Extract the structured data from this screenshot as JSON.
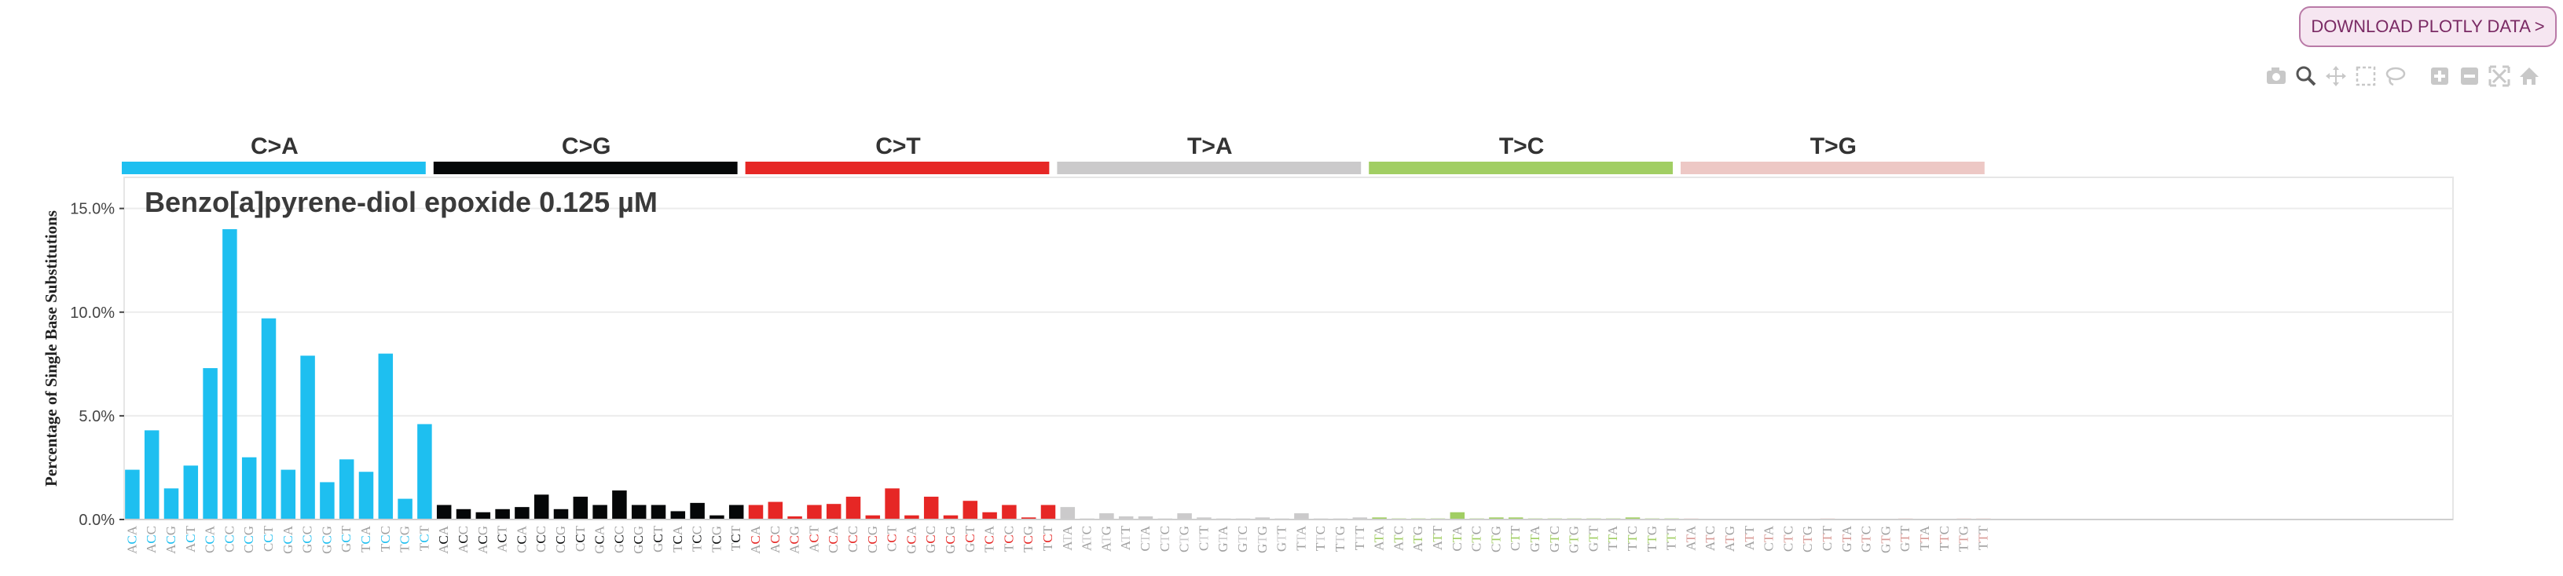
{
  "download_button": {
    "label": "DOWNLOAD PLOTLY DATA >"
  },
  "modebar": [
    "camera-icon",
    "zoom-icon",
    "pan-icon",
    "box-select-icon",
    "lasso-icon",
    "zoom-in-icon",
    "zoom-out-icon",
    "autoscale-icon",
    "reset-axes-icon"
  ],
  "chart_data": {
    "type": "bar",
    "title": "Benzo[a]pyrene-diol epoxide 0.125 µM",
    "ylabel": "Percentage of Single Base Substitutions",
    "ylim": [
      0,
      16.5
    ],
    "yticks": [
      0,
      5,
      10,
      15
    ],
    "ytick_labels": [
      "0.0%",
      "5.0%",
      "10.0%",
      "15.0%"
    ],
    "grid": true,
    "groups": [
      {
        "name": "C>A",
        "color": "#1ebff0",
        "categories": [
          "ACA",
          "ACC",
          "ACG",
          "ACT",
          "CCA",
          "CCC",
          "CCG",
          "CCT",
          "GCA",
          "GCC",
          "GCG",
          "GCT",
          "TCA",
          "TCC",
          "TCG",
          "TCT"
        ],
        "values": [
          2.4,
          4.3,
          1.5,
          2.6,
          7.3,
          14.0,
          3.0,
          9.7,
          2.4,
          7.9,
          1.8,
          2.9,
          2.3,
          8.0,
          1.0,
          4.6
        ]
      },
      {
        "name": "C>G",
        "color": "#050708",
        "categories": [
          "ACA",
          "ACC",
          "ACG",
          "ACT",
          "CCA",
          "CCC",
          "CCG",
          "CCT",
          "GCA",
          "GCC",
          "GCG",
          "GCT",
          "TCA",
          "TCC",
          "TCG",
          "TCT"
        ],
        "values": [
          0.7,
          0.5,
          0.35,
          0.5,
          0.6,
          1.2,
          0.5,
          1.1,
          0.7,
          1.4,
          0.7,
          0.7,
          0.4,
          0.8,
          0.2,
          0.7
        ]
      },
      {
        "name": "C>T",
        "color": "#e62725",
        "categories": [
          "ACA",
          "ACC",
          "ACG",
          "ACT",
          "CCA",
          "CCC",
          "CCG",
          "CCT",
          "GCA",
          "GCC",
          "GCG",
          "GCT",
          "TCA",
          "TCC",
          "TCG",
          "TCT"
        ],
        "values": [
          0.7,
          0.85,
          0.15,
          0.7,
          0.75,
          1.1,
          0.2,
          1.5,
          0.2,
          1.1,
          0.2,
          0.9,
          0.35,
          0.7,
          0.1,
          0.7
        ]
      },
      {
        "name": "T>A",
        "color": "#cbcacb",
        "categories": [
          "ATA",
          "ATC",
          "ATG",
          "ATT",
          "CTA",
          "CTC",
          "CTG",
          "CTT",
          "GTA",
          "GTC",
          "GTG",
          "GTT",
          "TTA",
          "TTC",
          "TTG",
          "TTT"
        ],
        "values": [
          0.6,
          0.05,
          0.3,
          0.15,
          0.15,
          0.05,
          0.3,
          0.1,
          0.05,
          0.05,
          0.1,
          0.05,
          0.3,
          0.05,
          0.05,
          0.1
        ]
      },
      {
        "name": "T>C",
        "color": "#a1ce63",
        "categories": [
          "ATA",
          "ATC",
          "ATG",
          "ATT",
          "CTA",
          "CTC",
          "CTG",
          "CTT",
          "GTA",
          "GTC",
          "GTG",
          "GTT",
          "TTA",
          "TTC",
          "TTG",
          "TTT"
        ],
        "values": [
          0.1,
          0.05,
          0.05,
          0.05,
          0.35,
          0.05,
          0.1,
          0.1,
          0.05,
          0.05,
          0.05,
          0.05,
          0.05,
          0.1,
          0.05,
          0.05
        ]
      },
      {
        "name": "T>G",
        "color": "#edc8c5",
        "categories": [
          "ATA",
          "ATC",
          "ATG",
          "ATT",
          "CTA",
          "CTC",
          "CTG",
          "CTT",
          "GTA",
          "GTC",
          "GTG",
          "GTT",
          "TTA",
          "TTC",
          "TTG",
          "TTT"
        ],
        "values": [
          0.05,
          0.03,
          0.03,
          0.03,
          0.03,
          0.03,
          0.03,
          0.05,
          0.03,
          0.03,
          0.03,
          0.05,
          0.03,
          0.03,
          0.05,
          0.05
        ]
      }
    ]
  }
}
